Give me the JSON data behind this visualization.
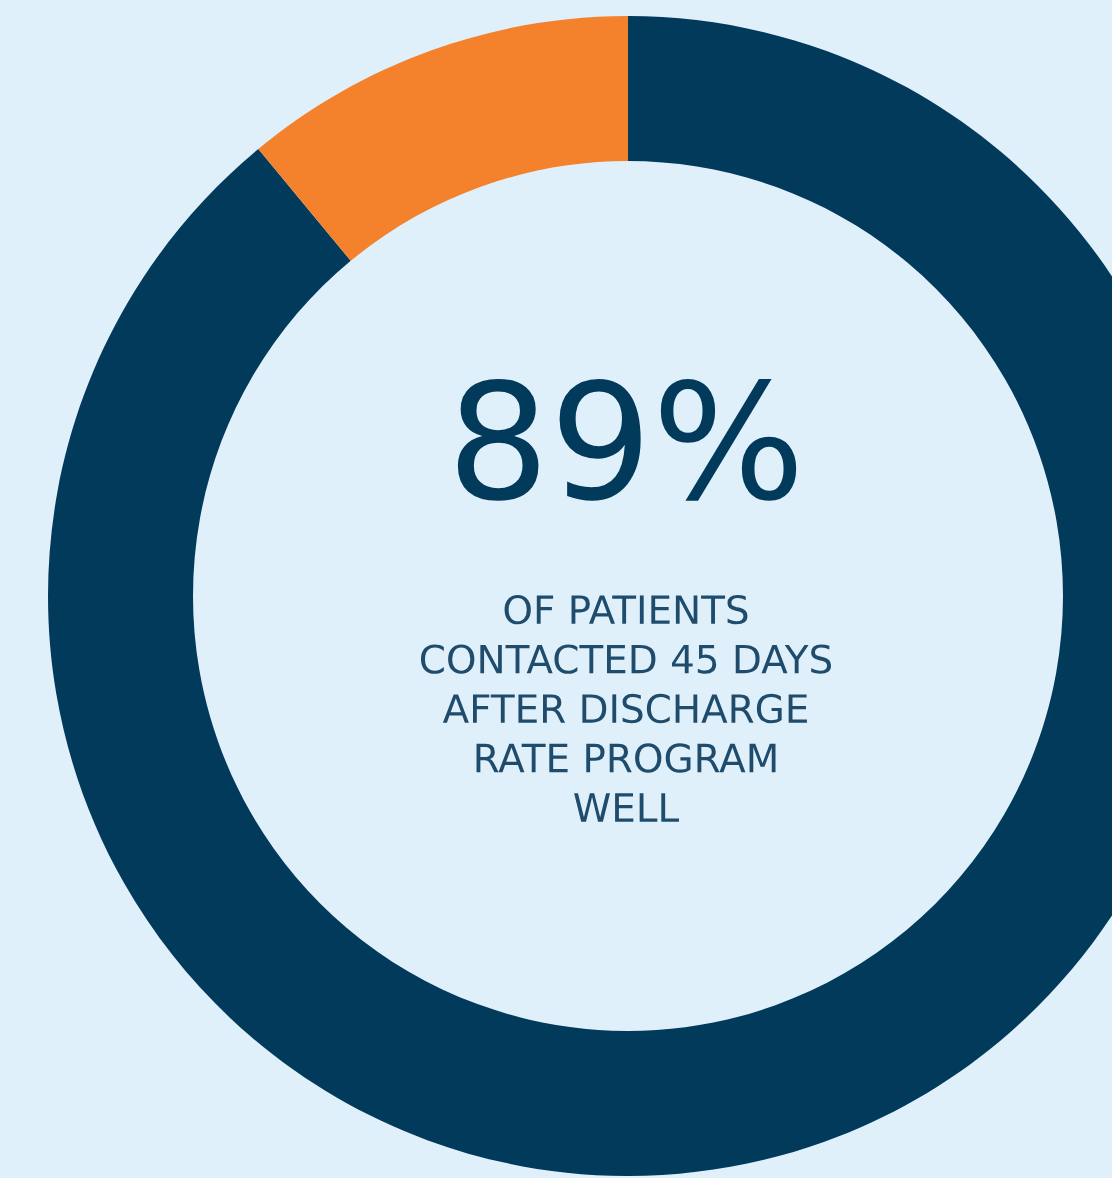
{
  "chart_data": {
    "type": "donut",
    "title": "89%",
    "subtitle": "OF PATIENTS\nCONTACTED 45 DAYS\nAFTER DISCHARGE\nRATE PROGRAM\nWELL",
    "categories": [
      null,
      null
    ],
    "values": [
      89,
      11
    ],
    "colors": [
      "#023a5c",
      "#f4812b"
    ]
  }
}
